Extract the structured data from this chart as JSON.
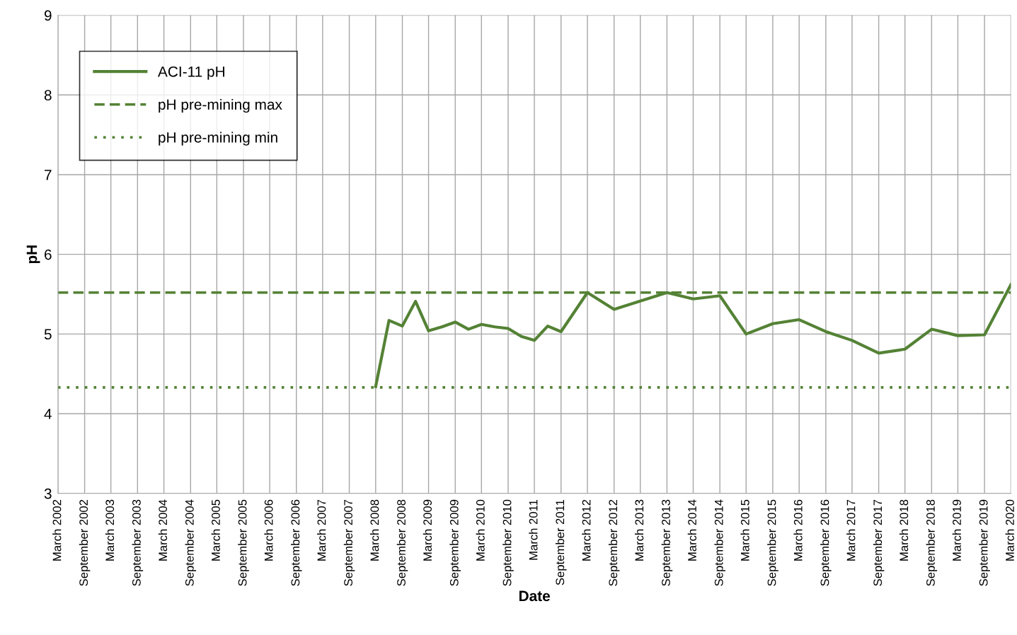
{
  "chart_data": {
    "type": "line",
    "xlabel": "Date",
    "ylabel": "pH",
    "ylim": [
      3,
      9
    ],
    "yticks": [
      3,
      4,
      5,
      6,
      7,
      8,
      9
    ],
    "xlim": [
      "2002-03-01",
      "2020-03-01"
    ],
    "xticks": [
      {
        "value": "2002-03-01",
        "label": "March 2002"
      },
      {
        "value": "2002-09-01",
        "label": "September 2002"
      },
      {
        "value": "2003-03-01",
        "label": "March 2003"
      },
      {
        "value": "2003-09-01",
        "label": "September 2003"
      },
      {
        "value": "2004-03-01",
        "label": "March 2004"
      },
      {
        "value": "2004-09-01",
        "label": "September 2004"
      },
      {
        "value": "2005-03-01",
        "label": "March 2005"
      },
      {
        "value": "2005-09-01",
        "label": "September 2005"
      },
      {
        "value": "2006-03-01",
        "label": "March 2006"
      },
      {
        "value": "2006-09-01",
        "label": "September 2006"
      },
      {
        "value": "2007-03-01",
        "label": "March 2007"
      },
      {
        "value": "2007-09-01",
        "label": "September 2007"
      },
      {
        "value": "2008-03-01",
        "label": "March 2008"
      },
      {
        "value": "2008-09-01",
        "label": "September 2008"
      },
      {
        "value": "2009-03-01",
        "label": "March 2009"
      },
      {
        "value": "2009-09-01",
        "label": "September 2009"
      },
      {
        "value": "2010-03-01",
        "label": "March 2010"
      },
      {
        "value": "2010-09-01",
        "label": "September 2010"
      },
      {
        "value": "2011-03-01",
        "label": "March 2011"
      },
      {
        "value": "2011-09-01",
        "label": "September 2011"
      },
      {
        "value": "2012-03-01",
        "label": "March 2012"
      },
      {
        "value": "2012-09-01",
        "label": "September 2012"
      },
      {
        "value": "2013-03-01",
        "label": "March 2013"
      },
      {
        "value": "2013-09-01",
        "label": "September 2013"
      },
      {
        "value": "2014-03-01",
        "label": "March 2014"
      },
      {
        "value": "2014-09-01",
        "label": "September 2014"
      },
      {
        "value": "2015-03-01",
        "label": "March 2015"
      },
      {
        "value": "2015-09-01",
        "label": "September 2015"
      },
      {
        "value": "2016-03-01",
        "label": "March 2016"
      },
      {
        "value": "2016-09-01",
        "label": "September 2016"
      },
      {
        "value": "2017-03-01",
        "label": "March 2017"
      },
      {
        "value": "2017-09-01",
        "label": "September 2017"
      },
      {
        "value": "2018-03-01",
        "label": "March 2018"
      },
      {
        "value": "2018-09-01",
        "label": "September 2018"
      },
      {
        "value": "2019-03-01",
        "label": "March 2019"
      },
      {
        "value": "2019-09-01",
        "label": "September 2019"
      },
      {
        "value": "2020-03-01",
        "label": "March 2020"
      }
    ],
    "grid": true,
    "legend": "top left",
    "marker": "none",
    "series": [
      {
        "name": "ACI-11 pH",
        "color": "#548235",
        "line_style": "solid",
        "x": [
          "2008-03-01",
          "2008-06-01",
          "2008-09-01",
          "2008-12-01",
          "2009-03-01",
          "2009-06-01",
          "2009-09-01",
          "2009-12-01",
          "2010-03-01",
          "2010-06-01",
          "2010-09-01",
          "2010-12-01",
          "2011-03-01",
          "2011-06-01",
          "2011-09-01",
          "2012-03-01",
          "2012-09-01",
          "2013-09-01",
          "2014-03-01",
          "2014-09-01",
          "2015-03-01",
          "2015-09-01",
          "2016-03-01",
          "2016-09-01",
          "2017-03-01",
          "2017-09-01",
          "2018-03-01",
          "2018-09-01",
          "2019-03-01",
          "2019-09-01",
          "2020-03-01"
        ],
        "values": [
          4.34,
          5.17,
          5.1,
          5.41,
          5.04,
          5.09,
          5.15,
          5.06,
          5.12,
          5.09,
          5.07,
          4.97,
          4.92,
          5.1,
          5.03,
          5.52,
          5.31,
          5.52,
          5.44,
          5.48,
          5.0,
          5.13,
          5.18,
          5.03,
          4.92,
          4.76,
          4.81,
          5.06,
          4.98,
          4.99,
          5.62
        ]
      },
      {
        "name": "pH pre-mining max",
        "color": "#548235",
        "line_style": "dashed",
        "x": [
          "2002-03-01",
          "2020-03-01"
        ],
        "values": [
          5.52,
          5.52
        ]
      },
      {
        "name": "pH pre-mining min",
        "color": "#548235",
        "line_style": "dotted",
        "x": [
          "2002-03-01",
          "2020-03-01"
        ],
        "values": [
          4.33,
          4.33
        ]
      }
    ]
  }
}
